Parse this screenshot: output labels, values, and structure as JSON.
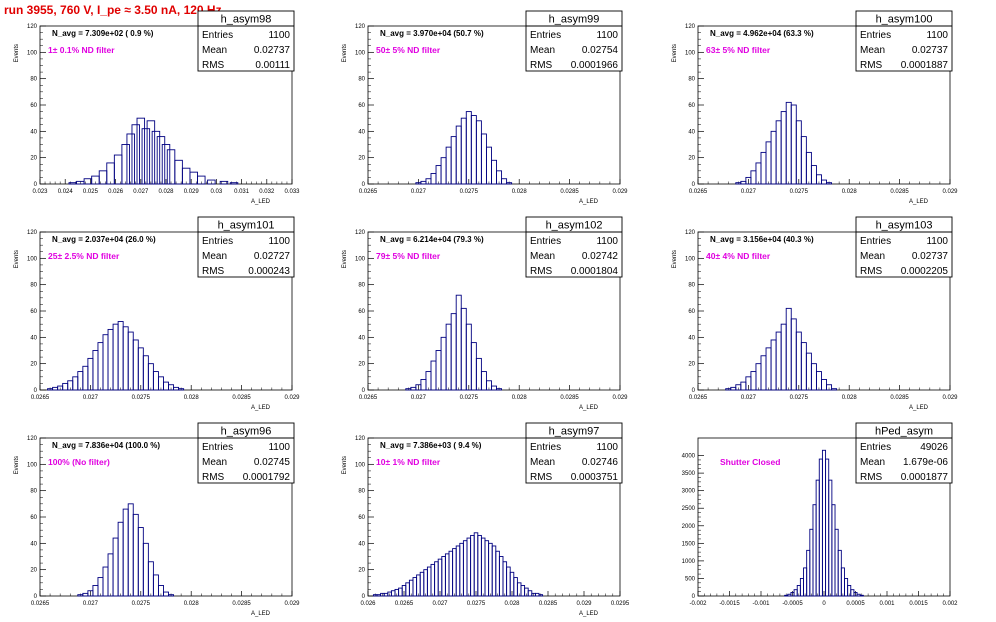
{
  "page": {
    "title": "run 3955,   760 V, I_pe ≈ 3.50 nA, 120 Hz"
  },
  "colors": {
    "title": "#e00000",
    "annotation": "#e000e0",
    "histogram": "#000080",
    "axis": "#000000"
  },
  "chart_data": [
    {
      "type": "bar",
      "name": "h_asym98",
      "ylabel": "Events",
      "xlabel": "A_LED",
      "stats": {
        "entries_label": "Entries",
        "entries": "1100",
        "mean_label": "Mean",
        "mean": "0.02737",
        "rms_label": "RMS",
        "rms": "0.00111"
      },
      "navg": "N_avg = 7.309e+02 ( 0.9 %)",
      "annotation": "1± 0.1% ND filter",
      "xlim": [
        0.023,
        0.033
      ],
      "ylim": [
        0,
        120
      ],
      "xticks": [
        "0.023",
        "0.024",
        "0.025",
        "0.026",
        "0.027",
        "0.028",
        "0.029",
        "0.03",
        "0.031",
        "0.032",
        "0.033"
      ],
      "yticks": [
        "0",
        "20",
        "40",
        "60",
        "80",
        "100",
        "120"
      ],
      "x": [
        0.0243,
        0.0246,
        0.0249,
        0.0252,
        0.0255,
        0.0258,
        0.0261,
        0.0264,
        0.0266,
        0.0268,
        0.027,
        0.0272,
        0.0274,
        0.0276,
        0.0278,
        0.028,
        0.0282,
        0.0285,
        0.0288,
        0.0291,
        0.0294,
        0.0298,
        0.0303,
        0.0307
      ],
      "values": [
        1,
        2,
        4,
        6,
        10,
        16,
        22,
        30,
        38,
        45,
        50,
        42,
        48,
        40,
        36,
        30,
        26,
        18,
        12,
        9,
        6,
        3,
        2,
        1
      ]
    },
    {
      "type": "bar",
      "name": "h_asym99",
      "ylabel": "Events",
      "xlabel": "A_LED",
      "stats": {
        "entries_label": "Entries",
        "entries": "1100",
        "mean_label": "Mean",
        "mean": "0.02754",
        "rms_label": "RMS",
        "rms": "0.0001966"
      },
      "navg": "N_avg = 3.970e+04 (50.7 %)",
      "annotation": "50± 5% ND filter",
      "xlim": [
        0.0265,
        0.029
      ],
      "ylim": [
        0,
        120
      ],
      "xticks": [
        "0.0265",
        "0.027",
        "0.0275",
        "0.028",
        "0.0285",
        "0.029"
      ],
      "yticks": [
        "0",
        "20",
        "40",
        "60",
        "80",
        "100",
        "120"
      ],
      "x": [
        0.027,
        0.02705,
        0.0271,
        0.02715,
        0.0272,
        0.02725,
        0.0273,
        0.02735,
        0.0274,
        0.02745,
        0.0275,
        0.02755,
        0.0276,
        0.02765,
        0.0277,
        0.02775,
        0.0278,
        0.02785,
        0.0279
      ],
      "values": [
        1,
        2,
        4,
        8,
        14,
        20,
        28,
        36,
        44,
        50,
        55,
        52,
        48,
        38,
        28,
        18,
        10,
        4,
        1
      ]
    },
    {
      "type": "bar",
      "name": "h_asym100",
      "ylabel": "Events",
      "xlabel": "A_LED",
      "stats": {
        "entries_label": "Entries",
        "entries": "1100",
        "mean_label": "Mean",
        "mean": "0.02737",
        "rms_label": "RMS",
        "rms": "0.0001887"
      },
      "navg": "N_avg = 4.962e+04 (63.3 %)",
      "annotation": "63± 5% ND filter",
      "xlim": [
        0.0265,
        0.029
      ],
      "ylim": [
        0,
        120
      ],
      "xticks": [
        "0.0265",
        "0.027",
        "0.0275",
        "0.028",
        "0.0285",
        "0.029"
      ],
      "yticks": [
        "0",
        "20",
        "40",
        "60",
        "80",
        "100",
        "120"
      ],
      "x": [
        0.0269,
        0.02695,
        0.027,
        0.02705,
        0.0271,
        0.02715,
        0.0272,
        0.02725,
        0.0273,
        0.02735,
        0.0274,
        0.02745,
        0.0275,
        0.02755,
        0.0276,
        0.02765,
        0.0277,
        0.02775,
        0.0278
      ],
      "values": [
        1,
        2,
        5,
        10,
        16,
        24,
        32,
        40,
        48,
        55,
        62,
        60,
        48,
        36,
        24,
        14,
        7,
        3,
        1
      ]
    },
    {
      "type": "bar",
      "name": "h_asym101",
      "ylabel": "Events",
      "xlabel": "A_LED",
      "stats": {
        "entries_label": "Entries",
        "entries": "1100",
        "mean_label": "Mean",
        "mean": "0.02727",
        "rms_label": "RMS",
        "rms": "0.000243"
      },
      "navg": "N_avg = 2.037e+04 (26.0 %)",
      "annotation": "25± 2.5% ND filter",
      "xlim": [
        0.0265,
        0.029
      ],
      "ylim": [
        0,
        120
      ],
      "xticks": [
        "0.0265",
        "0.027",
        "0.0275",
        "0.028",
        "0.0285",
        "0.029"
      ],
      "yticks": [
        "0",
        "20",
        "40",
        "60",
        "80",
        "100",
        "120"
      ],
      "x": [
        0.0266,
        0.02665,
        0.0267,
        0.02675,
        0.0268,
        0.02685,
        0.0269,
        0.02695,
        0.027,
        0.02705,
        0.0271,
        0.02715,
        0.0272,
        0.02725,
        0.0273,
        0.02735,
        0.0274,
        0.02745,
        0.0275,
        0.02755,
        0.0276,
        0.02765,
        0.0277,
        0.02775,
        0.0278,
        0.02785,
        0.0279
      ],
      "values": [
        1,
        2,
        3,
        5,
        7,
        10,
        14,
        18,
        24,
        30,
        36,
        42,
        46,
        50,
        52,
        48,
        44,
        38,
        32,
        26,
        20,
        14,
        10,
        6,
        4,
        2,
        1
      ]
    },
    {
      "type": "bar",
      "name": "h_asym102",
      "ylabel": "Events",
      "xlabel": "A_LED",
      "stats": {
        "entries_label": "Entries",
        "entries": "1100",
        "mean_label": "Mean",
        "mean": "0.02742",
        "rms_label": "RMS",
        "rms": "0.0001804"
      },
      "navg": "N_avg = 6.214e+04 (79.3 %)",
      "annotation": "79± 5% ND filter",
      "xlim": [
        0.0265,
        0.029
      ],
      "ylim": [
        0,
        120
      ],
      "xticks": [
        "0.0265",
        "0.027",
        "0.0275",
        "0.028",
        "0.0285",
        "0.029"
      ],
      "yticks": [
        "0",
        "20",
        "40",
        "60",
        "80",
        "100",
        "120"
      ],
      "x": [
        0.0269,
        0.02695,
        0.027,
        0.02705,
        0.0271,
        0.02715,
        0.0272,
        0.02725,
        0.0273,
        0.02735,
        0.0274,
        0.02745,
        0.0275,
        0.02755,
        0.0276,
        0.02765,
        0.0277,
        0.02775,
        0.0278
      ],
      "values": [
        1,
        2,
        4,
        8,
        14,
        22,
        30,
        40,
        50,
        58,
        72,
        62,
        50,
        36,
        24,
        14,
        7,
        3,
        1
      ]
    },
    {
      "type": "bar",
      "name": "h_asym103",
      "ylabel": "Events",
      "xlabel": "A_LED",
      "stats": {
        "entries_label": "Entries",
        "entries": "1100",
        "mean_label": "Mean",
        "mean": "0.02737",
        "rms_label": "RMS",
        "rms": "0.0002205"
      },
      "navg": "N_avg = 3.156e+04 (40.3 %)",
      "annotation": "40± 4% ND filter",
      "xlim": [
        0.0265,
        0.029
      ],
      "ylim": [
        0,
        120
      ],
      "xticks": [
        "0.0265",
        "0.027",
        "0.0275",
        "0.028",
        "0.0285",
        "0.029"
      ],
      "yticks": [
        "0",
        "20",
        "40",
        "60",
        "80",
        "100",
        "120"
      ],
      "x": [
        0.0268,
        0.02685,
        0.0269,
        0.02695,
        0.027,
        0.02705,
        0.0271,
        0.02715,
        0.0272,
        0.02725,
        0.0273,
        0.02735,
        0.0274,
        0.02745,
        0.0275,
        0.02755,
        0.0276,
        0.02765,
        0.0277,
        0.02775,
        0.0278,
        0.02785
      ],
      "values": [
        1,
        2,
        4,
        6,
        10,
        14,
        20,
        26,
        32,
        38,
        44,
        50,
        62,
        54,
        44,
        36,
        28,
        20,
        14,
        8,
        4,
        1
      ]
    },
    {
      "type": "bar",
      "name": "h_asym96",
      "ylabel": "Events",
      "xlabel": "A_LED",
      "stats": {
        "entries_label": "Entries",
        "entries": "1100",
        "mean_label": "Mean",
        "mean": "0.02745",
        "rms_label": "RMS",
        "rms": "0.0001792"
      },
      "navg": "N_avg = 7.836e+04 (100.0 %)",
      "annotation": "100% (No filter)",
      "xlim": [
        0.0265,
        0.029
      ],
      "ylim": [
        0,
        120
      ],
      "xticks": [
        "0.0265",
        "0.027",
        "0.0275",
        "0.028",
        "0.0285",
        "0.029"
      ],
      "yticks": [
        "0",
        "20",
        "40",
        "60",
        "80",
        "100",
        "120"
      ],
      "x": [
        0.0269,
        0.02695,
        0.027,
        0.02705,
        0.0271,
        0.02715,
        0.0272,
        0.02725,
        0.0273,
        0.02735,
        0.0274,
        0.02745,
        0.0275,
        0.02755,
        0.0276,
        0.02765,
        0.0277,
        0.02775,
        0.0278
      ],
      "values": [
        1,
        2,
        4,
        8,
        14,
        22,
        32,
        44,
        56,
        66,
        70,
        62,
        52,
        40,
        26,
        16,
        8,
        3,
        1
      ]
    },
    {
      "type": "bar",
      "name": "h_asym97",
      "ylabel": "Events",
      "xlabel": "A_LED",
      "stats": {
        "entries_label": "Entries",
        "entries": "1100",
        "mean_label": "Mean",
        "mean": "0.02746",
        "rms_label": "RMS",
        "rms": "0.0003751"
      },
      "navg": "N_avg = 7.386e+03 ( 9.4 %)",
      "annotation": "10± 1% ND filter",
      "xlim": [
        0.026,
        0.0295
      ],
      "ylim": [
        0,
        120
      ],
      "xticks": [
        "0.026",
        "0.0265",
        "0.027",
        "0.0275",
        "0.028",
        "0.0285",
        "0.029",
        "0.0295"
      ],
      "yticks": [
        "0",
        "20",
        "40",
        "60",
        "80",
        "100",
        "120"
      ],
      "x": [
        0.0261,
        0.02615,
        0.0262,
        0.02625,
        0.0263,
        0.02635,
        0.0264,
        0.02645,
        0.0265,
        0.02655,
        0.0266,
        0.02665,
        0.0267,
        0.02675,
        0.0268,
        0.02685,
        0.0269,
        0.02695,
        0.027,
        0.02705,
        0.0271,
        0.02715,
        0.0272,
        0.02725,
        0.0273,
        0.02735,
        0.0274,
        0.02745,
        0.0275,
        0.02755,
        0.0276,
        0.02765,
        0.0277,
        0.02775,
        0.0278,
        0.02785,
        0.0279,
        0.02795,
        0.028,
        0.02805,
        0.0281,
        0.02815,
        0.0282,
        0.02825,
        0.0283,
        0.02835,
        0.0284
      ],
      "values": [
        1,
        1,
        2,
        2,
        3,
        4,
        5,
        6,
        8,
        10,
        12,
        14,
        16,
        18,
        20,
        22,
        24,
        26,
        28,
        30,
        32,
        34,
        36,
        38,
        40,
        42,
        44,
        46,
        48,
        46,
        44,
        42,
        40,
        38,
        34,
        30,
        26,
        22,
        18,
        14,
        10,
        8,
        6,
        4,
        2,
        2,
        1
      ]
    },
    {
      "type": "bar",
      "name": "hPed_asym",
      "ylabel": "",
      "xlabel": "",
      "stats": {
        "entries_label": "Entries",
        "entries": "49026",
        "mean_label": "Mean",
        "mean": "1.679e-06",
        "rms_label": "RMS",
        "rms": "0.0001877"
      },
      "navg": "",
      "annotation": "Shutter Closed",
      "xlim": [
        -0.002,
        0.002
      ],
      "ylim": [
        0,
        4500
      ],
      "xticks": [
        "-0.002",
        "-0.0015",
        "-0.001",
        "-0.0005",
        "0",
        "0.0005",
        "0.001",
        "0.0015",
        "0.002"
      ],
      "yticks": [
        "0",
        "500",
        "1000",
        "1500",
        "2000",
        "2500",
        "3000",
        "3500",
        "4000"
      ],
      "x": [
        -0.0006,
        -0.00055,
        -0.0005,
        -0.00045,
        -0.0004,
        -0.00035,
        -0.0003,
        -0.00025,
        -0.0002,
        -0.00015,
        -0.0001,
        -5e-05,
        0,
        5e-05,
        0.0001,
        0.00015,
        0.0002,
        0.00025,
        0.0003,
        0.00035,
        0.0004,
        0.00045,
        0.0005,
        0.00055,
        0.0006
      ],
      "values": [
        20,
        50,
        100,
        180,
        300,
        500,
        800,
        1300,
        1900,
        2600,
        3300,
        3900,
        4150,
        3900,
        3300,
        2600,
        1900,
        1300,
        800,
        500,
        300,
        180,
        100,
        50,
        20
      ]
    }
  ]
}
